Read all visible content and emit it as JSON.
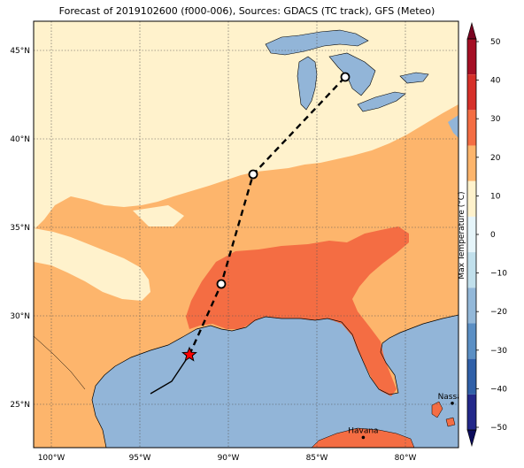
{
  "title": "Forecast of 2019102600 (f000-006), Sources: GDACS (TC track), GFS (Meteo)",
  "map": {
    "lon_ticks": [
      "100°W",
      "95°W",
      "90°W",
      "85°W",
      "80°W"
    ],
    "lat_ticks": [
      "45°N",
      "40°N",
      "35°N",
      "30°N",
      "25°N"
    ],
    "cities": [
      {
        "name": "Nassau",
        "lon": -77.35,
        "lat": 25.06
      },
      {
        "name": "Havana",
        "lon": -82.38,
        "lat": 23.13
      }
    ],
    "track_positions": [
      {
        "lon": -92.2,
        "lat": 27.8,
        "marker": "star"
      },
      {
        "lon": -90.4,
        "lat": 31.8,
        "marker": "circle"
      },
      {
        "lon": -88.6,
        "lat": 38.0,
        "marker": "circle"
      },
      {
        "lon": -83.4,
        "lat": 43.5,
        "marker": "circle"
      }
    ],
    "past_track": [
      [
        -94.4,
        25.6
      ],
      [
        -93.2,
        26.3
      ],
      [
        -92.2,
        27.8
      ]
    ]
  },
  "colorbar": {
    "label": "Max Temperature (°C)",
    "ticks": [
      "50",
      "40",
      "30",
      "20",
      "10",
      "0",
      "−10",
      "−20",
      "−30",
      "−40",
      "−50"
    ],
    "colors": [
      "#67001f",
      "#b2182b",
      "#d6604d",
      "#f4a582",
      "#fddbc7",
      "#f7f7f7",
      "#d1e5f0",
      "#92c5de",
      "#4393c3",
      "#2166ac",
      "#053061"
    ],
    "bands_top_to_bottom": [
      "#a50f25",
      "#d6302a",
      "#f46d43",
      "#fdb56c",
      "#fff2cc",
      "#e6f5fa",
      "#c1e0ec",
      "#93b8d9",
      "#5b8fc4",
      "#3060a8",
      "#23288a"
    ]
  },
  "legend_colors": {
    "sea": "#92b5d8",
    "land_10_20": "#fdb56c",
    "land_0_10": "#fff2cc",
    "land_20_30": "#f46d43"
  }
}
